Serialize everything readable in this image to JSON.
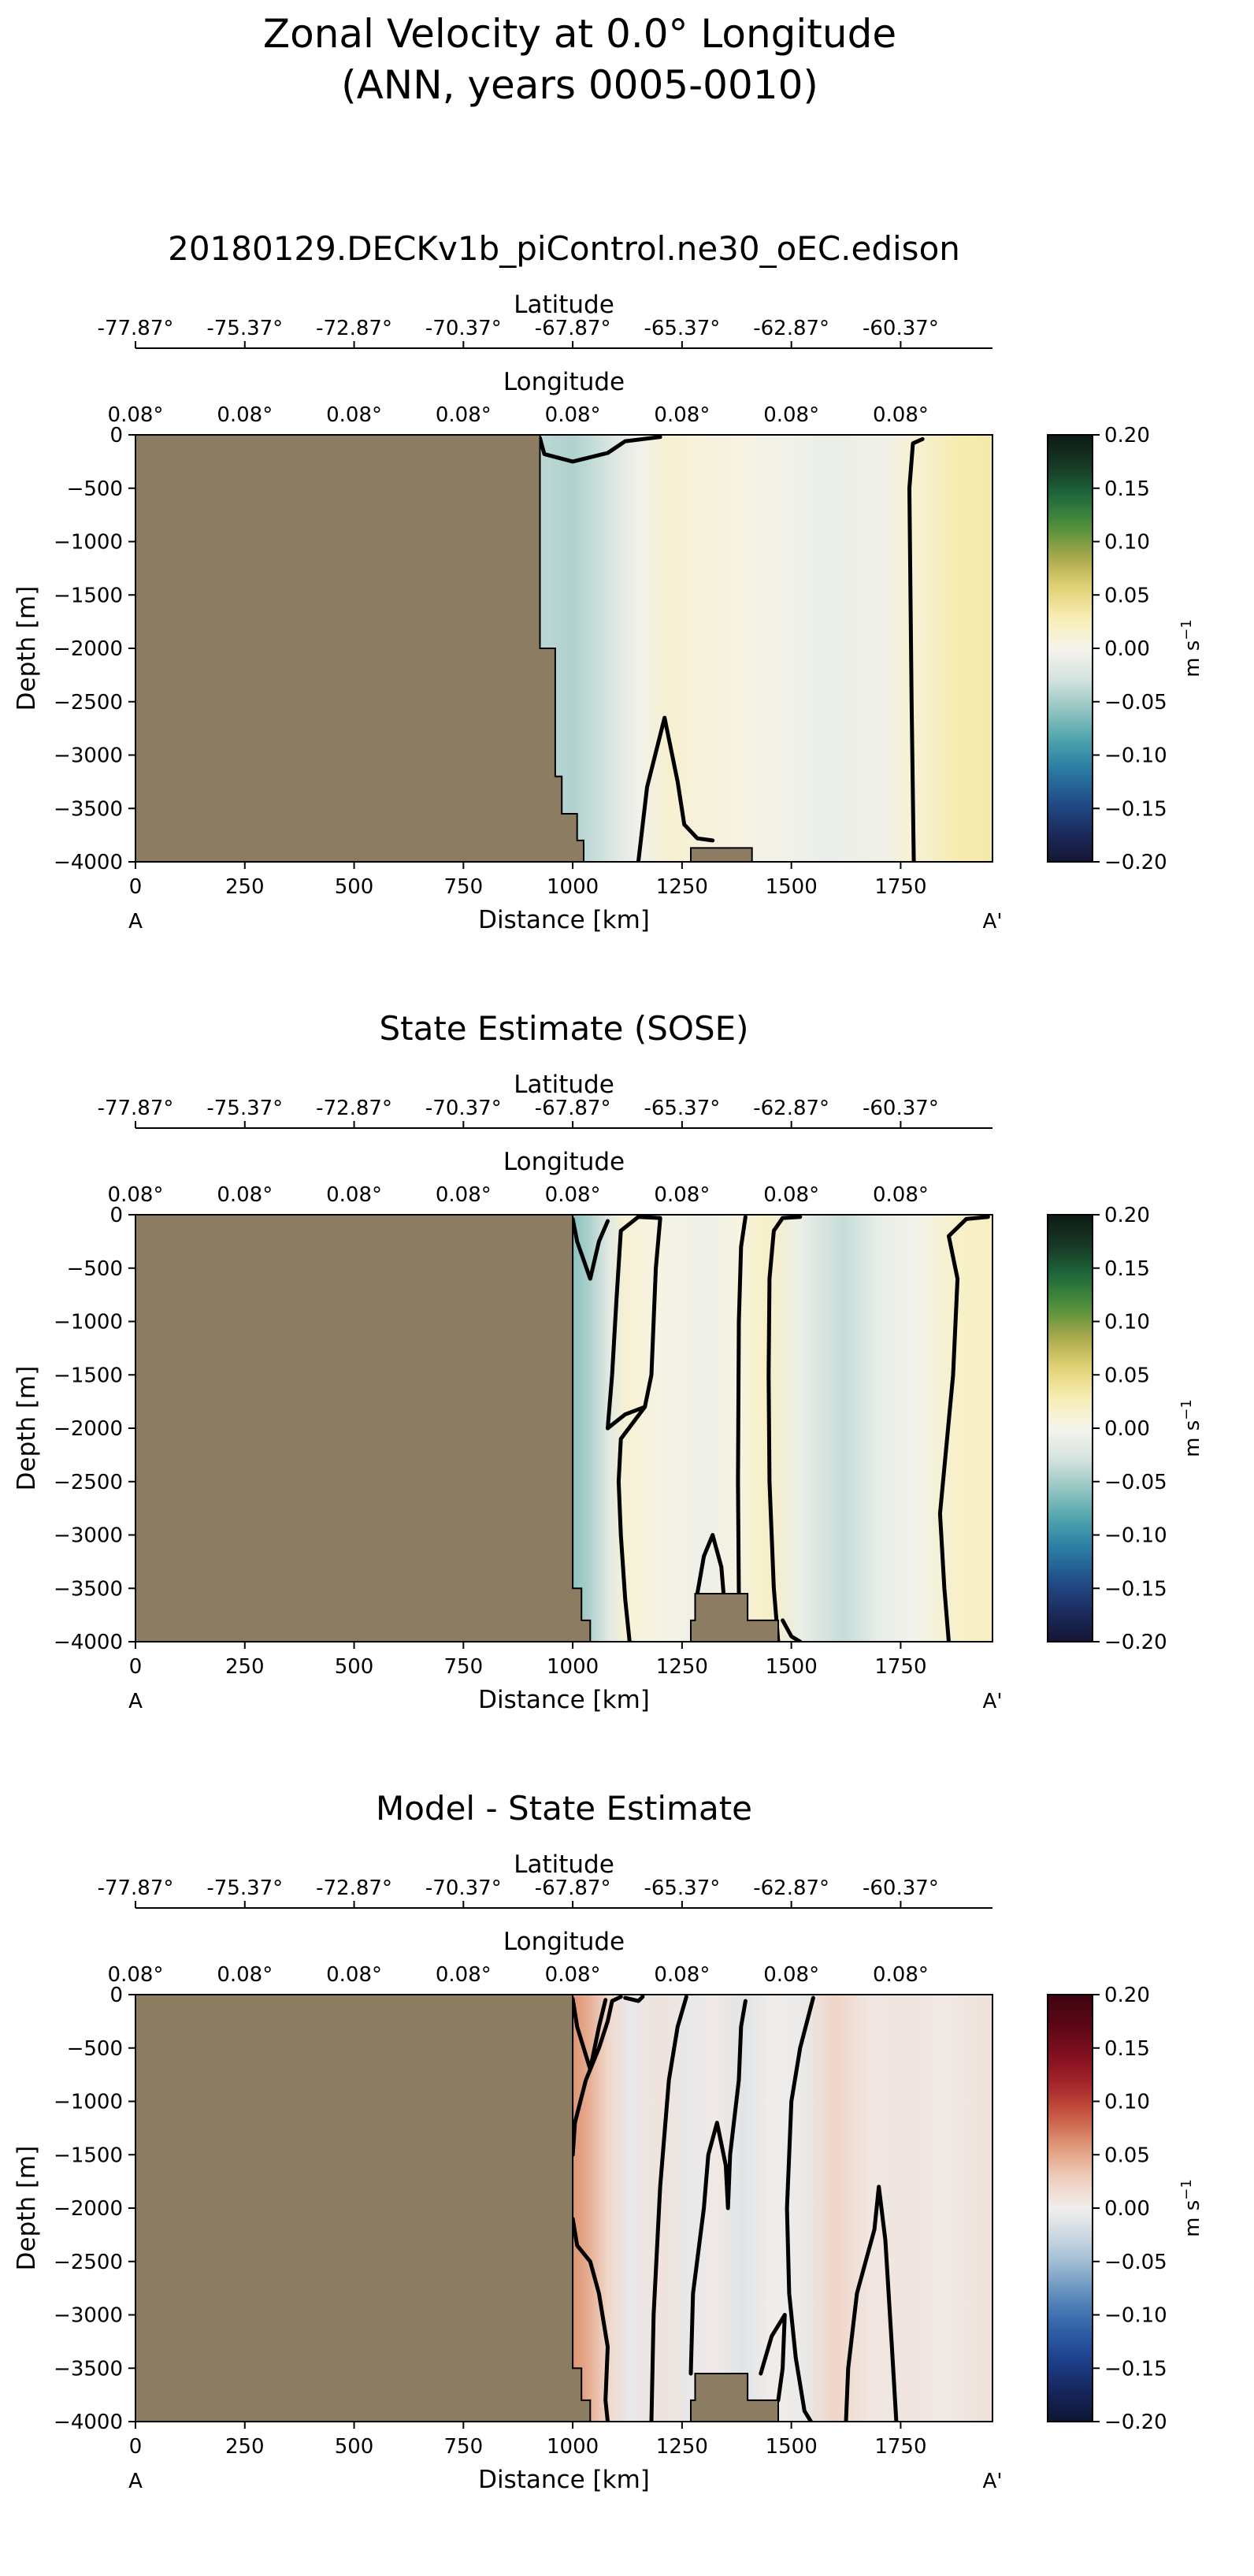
{
  "figure": {
    "title_line1": "Zonal Velocity at 0.0° Longitude",
    "title_line2": "(ANN, years 0005-0010)"
  },
  "colors": {
    "land": "#8c7d62",
    "contour": "#000000"
  },
  "chart_data": [
    {
      "type": "heatmap",
      "title": "20180129.DECKv1b_piControl.ne30_oEC.edison",
      "xlabel": "Distance [km]",
      "ylabel": "Depth [m]",
      "top_axis_1_label": "Latitude",
      "top_axis_1_ticks": [
        "-77.87°",
        "-75.37°",
        "-72.87°",
        "-70.37°",
        "-67.87°",
        "-65.37°",
        "-62.87°",
        "-60.37°"
      ],
      "top_axis_2_label": "Longitude",
      "top_axis_2_ticks": [
        "0.08°",
        "0.08°",
        "0.08°",
        "0.08°",
        "0.08°",
        "0.08°",
        "0.08°",
        "0.08°"
      ],
      "xlim": [
        0,
        1960
      ],
      "ylim": [
        -4000,
        0
      ],
      "xticks": [
        0,
        250,
        500,
        750,
        1000,
        1250,
        1500,
        1750
      ],
      "yticks": [
        0,
        -500,
        -1000,
        -1500,
        -2000,
        -2500,
        -3000,
        -3500,
        -4000
      ],
      "section_start_label": "A",
      "section_end_label": "A'",
      "colorbar": {
        "label": "m s",
        "label_exponent": "−1",
        "ticks": [
          "0.20",
          "0.15",
          "0.10",
          "0.05",
          "0.00",
          "−0.05",
          "−0.10",
          "−0.15",
          "−0.20"
        ],
        "range": [
          -0.2,
          0.2
        ],
        "colormap": [
          "#f6f4ec",
          "#f7edb4",
          "#e2d274",
          "#a7a84a",
          "#4e8f3a",
          "#1d6a3b",
          "#173826",
          "#0c1a12"
        ],
        "colormap_neg": [
          "#f6f4ec",
          "#d5e3df",
          "#93c5c2",
          "#4da3ac",
          "#2a7aa3",
          "#214e8a",
          "#1c2c5e",
          "#141535"
        ]
      },
      "land_profile": [
        [
          0,
          0
        ],
        [
          925,
          0
        ],
        [
          925,
          -2000
        ],
        [
          960,
          -2000
        ],
        [
          960,
          -3200
        ],
        [
          975,
          -3200
        ],
        [
          975,
          -3550
        ],
        [
          1010,
          -3550
        ],
        [
          1010,
          -3800
        ],
        [
          1025,
          -3800
        ],
        [
          1025,
          -4000
        ],
        [
          0,
          -4000
        ]
      ],
      "bathymetry_bumps": [
        [
          [
            1270,
            -4000
          ],
          [
            1270,
            -3870
          ],
          [
            1410,
            -3870
          ],
          [
            1410,
            -4000
          ]
        ]
      ],
      "velocity_profile": [
        {
          "x": 930,
          "v": -0.04
        },
        {
          "x": 1000,
          "v": -0.045
        },
        {
          "x": 1100,
          "v": -0.02
        },
        {
          "x": 1150,
          "v": -0.005
        },
        {
          "x": 1220,
          "v": 0.015
        },
        {
          "x": 1300,
          "v": 0.008
        },
        {
          "x": 1400,
          "v": 0.004
        },
        {
          "x": 1500,
          "v": -0.005
        },
        {
          "x": 1580,
          "v": -0.01
        },
        {
          "x": 1700,
          "v": -0.006
        },
        {
          "x": 1780,
          "v": 0.012
        },
        {
          "x": 1880,
          "v": 0.03
        },
        {
          "x": 1960,
          "v": 0.032
        }
      ],
      "contours": [
        [
          [
            925,
            -30
          ],
          [
            935,
            -180
          ],
          [
            1000,
            -250
          ],
          [
            1080,
            -170
          ],
          [
            1120,
            -60
          ],
          [
            1200,
            -20
          ]
        ],
        [
          [
            1780,
            -4000
          ],
          [
            1775,
            -2500
          ],
          [
            1770,
            -500
          ],
          [
            1778,
            -80
          ],
          [
            1800,
            -40
          ]
        ],
        [
          [
            1150,
            -4000
          ],
          [
            1170,
            -3300
          ],
          [
            1210,
            -2650
          ],
          [
            1240,
            -3250
          ],
          [
            1255,
            -3650
          ],
          [
            1285,
            -3780
          ],
          [
            1320,
            -3800
          ]
        ]
      ]
    },
    {
      "type": "heatmap",
      "title": "State Estimate (SOSE)",
      "xlabel": "Distance [km]",
      "ylabel": "Depth [m]",
      "top_axis_1_label": "Latitude",
      "top_axis_1_ticks": [
        "-77.87°",
        "-75.37°",
        "-72.87°",
        "-70.37°",
        "-67.87°",
        "-65.37°",
        "-62.87°",
        "-60.37°"
      ],
      "top_axis_2_label": "Longitude",
      "top_axis_2_ticks": [
        "0.08°",
        "0.08°",
        "0.08°",
        "0.08°",
        "0.08°",
        "0.08°",
        "0.08°",
        "0.08°"
      ],
      "xlim": [
        0,
        1960
      ],
      "ylim": [
        -4000,
        0
      ],
      "xticks": [
        0,
        250,
        500,
        750,
        1000,
        1250,
        1500,
        1750
      ],
      "yticks": [
        0,
        -500,
        -1000,
        -1500,
        -2000,
        -2500,
        -3000,
        -3500,
        -4000
      ],
      "section_start_label": "A",
      "section_end_label": "A'",
      "colorbar": {
        "label": "m s",
        "label_exponent": "−1",
        "ticks": [
          "0.20",
          "0.15",
          "0.10",
          "0.05",
          "0.00",
          "−0.05",
          "−0.10",
          "−0.15",
          "−0.20"
        ],
        "range": [
          -0.2,
          0.2
        ],
        "colormap": [
          "#f6f4ec",
          "#f7edb4",
          "#e2d274",
          "#a7a84a",
          "#4e8f3a",
          "#1d6a3b",
          "#173826",
          "#0c1a12"
        ],
        "colormap_neg": [
          "#f6f4ec",
          "#d5e3df",
          "#93c5c2",
          "#4da3ac",
          "#2a7aa3",
          "#214e8a",
          "#1c2c5e",
          "#141535"
        ]
      },
      "land_profile": [
        [
          0,
          0
        ],
        [
          1000,
          0
        ],
        [
          1000,
          -3500
        ],
        [
          1020,
          -3500
        ],
        [
          1020,
          -3800
        ],
        [
          1040,
          -3800
        ],
        [
          1040,
          -4000
        ],
        [
          0,
          -4000
        ]
      ],
      "bathymetry_bumps": [
        [
          [
            1270,
            -4000
          ],
          [
            1270,
            -3800
          ],
          [
            1280,
            -3800
          ],
          [
            1280,
            -3550
          ],
          [
            1400,
            -3550
          ],
          [
            1400,
            -3800
          ],
          [
            1470,
            -3800
          ],
          [
            1470,
            -4000
          ]
        ]
      ],
      "velocity_profile": [
        {
          "x": 1000,
          "v": -0.06
        },
        {
          "x": 1030,
          "v": -0.05
        },
        {
          "x": 1080,
          "v": -0.02
        },
        {
          "x": 1120,
          "v": 0.012
        },
        {
          "x": 1200,
          "v": 0.004
        },
        {
          "x": 1300,
          "v": -0.008
        },
        {
          "x": 1380,
          "v": 0.006
        },
        {
          "x": 1440,
          "v": 0.02
        },
        {
          "x": 1520,
          "v": -0.01
        },
        {
          "x": 1620,
          "v": -0.035
        },
        {
          "x": 1700,
          "v": -0.012
        },
        {
          "x": 1780,
          "v": -0.004
        },
        {
          "x": 1880,
          "v": 0.018
        },
        {
          "x": 1960,
          "v": 0.022
        }
      ],
      "contours": [
        [
          [
            1000,
            -40
          ],
          [
            1010,
            -250
          ],
          [
            1040,
            -600
          ],
          [
            1060,
            -250
          ],
          [
            1080,
            -60
          ]
        ],
        [
          [
            1080,
            -2000
          ],
          [
            1090,
            -1500
          ],
          [
            1100,
            -800
          ],
          [
            1110,
            -150
          ],
          [
            1150,
            -20
          ],
          [
            1200,
            -30
          ]
        ],
        [
          [
            1080,
            -2000
          ],
          [
            1120,
            -1870
          ],
          [
            1165,
            -1800
          ],
          [
            1180,
            -1500
          ],
          [
            1185,
            -1000
          ],
          [
            1190,
            -500
          ],
          [
            1200,
            -40
          ]
        ],
        [
          [
            1130,
            -4000
          ],
          [
            1120,
            -3600
          ],
          [
            1110,
            -3000
          ],
          [
            1105,
            -2500
          ],
          [
            1110,
            -2100
          ],
          [
            1165,
            -1800
          ]
        ],
        [
          [
            1380,
            -3550
          ],
          [
            1378,
            -2500
          ],
          [
            1380,
            -1000
          ],
          [
            1385,
            -300
          ],
          [
            1395,
            -20
          ]
        ],
        [
          [
            1285,
            -3550
          ],
          [
            1300,
            -3200
          ],
          [
            1320,
            -3000
          ],
          [
            1340,
            -3300
          ],
          [
            1345,
            -3550
          ]
        ],
        [
          [
            1470,
            -4000
          ],
          [
            1460,
            -3500
          ],
          [
            1450,
            -2500
          ],
          [
            1448,
            -1500
          ],
          [
            1450,
            -600
          ],
          [
            1460,
            -150
          ],
          [
            1480,
            -30
          ],
          [
            1520,
            -20
          ]
        ],
        [
          [
            1860,
            -4000
          ],
          [
            1850,
            -3500
          ],
          [
            1840,
            -2800
          ],
          [
            1870,
            -1500
          ],
          [
            1880,
            -600
          ],
          [
            1860,
            -200
          ],
          [
            1900,
            -40
          ],
          [
            1950,
            -20
          ]
        ],
        [
          [
            1480,
            -3800
          ],
          [
            1500,
            -3950
          ],
          [
            1520,
            -4000
          ]
        ]
      ]
    },
    {
      "type": "heatmap",
      "title": "Model - State Estimate",
      "xlabel": "Distance [km]",
      "ylabel": "Depth [m]",
      "top_axis_1_label": "Latitude",
      "top_axis_1_ticks": [
        "-77.87°",
        "-75.37°",
        "-72.87°",
        "-70.37°",
        "-67.87°",
        "-65.37°",
        "-62.87°",
        "-60.37°"
      ],
      "top_axis_2_label": "Longitude",
      "top_axis_2_ticks": [
        "0.08°",
        "0.08°",
        "0.08°",
        "0.08°",
        "0.08°",
        "0.08°",
        "0.08°",
        "0.08°"
      ],
      "xlim": [
        0,
        1960
      ],
      "ylim": [
        -4000,
        0
      ],
      "xticks": [
        0,
        250,
        500,
        750,
        1000,
        1250,
        1500,
        1750
      ],
      "yticks": [
        0,
        -500,
        -1000,
        -1500,
        -2000,
        -2500,
        -3000,
        -3500,
        -4000
      ],
      "section_start_label": "A",
      "section_end_label": "A'",
      "colorbar": {
        "label": "m s",
        "label_exponent": "−1",
        "ticks": [
          "0.20",
          "0.15",
          "0.10",
          "0.05",
          "0.00",
          "−0.05",
          "−0.10",
          "−0.15",
          "−0.20"
        ],
        "range": [
          -0.2,
          0.2
        ],
        "colormap": [
          "#f1eeec",
          "#efcdbc",
          "#e19a7b",
          "#c95a43",
          "#a8262b",
          "#821020",
          "#5c0715",
          "#3e0410"
        ],
        "colormap_neg": [
          "#f1eeec",
          "#c8d6e1",
          "#92b4cf",
          "#5686b9",
          "#2f5fa8",
          "#1d3f8c",
          "#16265c",
          "#0d1535"
        ]
      },
      "land_profile": [
        [
          0,
          0
        ],
        [
          1000,
          0
        ],
        [
          1000,
          -3500
        ],
        [
          1020,
          -3500
        ],
        [
          1020,
          -3800
        ],
        [
          1040,
          -3800
        ],
        [
          1040,
          -4000
        ],
        [
          0,
          -4000
        ]
      ],
      "bathymetry_bumps": [
        [
          [
            1270,
            -4000
          ],
          [
            1270,
            -3800
          ],
          [
            1280,
            -3800
          ],
          [
            1280,
            -3550
          ],
          [
            1400,
            -3550
          ],
          [
            1400,
            -3800
          ],
          [
            1470,
            -3800
          ],
          [
            1470,
            -4000
          ]
        ]
      ],
      "velocity_profile": [
        {
          "x": 1000,
          "v": 0.06
        },
        {
          "x": 1030,
          "v": 0.05
        },
        {
          "x": 1080,
          "v": 0.02
        },
        {
          "x": 1130,
          "v": -0.006
        },
        {
          "x": 1200,
          "v": 0.01
        },
        {
          "x": 1270,
          "v": -0.006
        },
        {
          "x": 1330,
          "v": 0.004
        },
        {
          "x": 1390,
          "v": -0.012
        },
        {
          "x": 1450,
          "v": 0.002
        },
        {
          "x": 1520,
          "v": -0.004
        },
        {
          "x": 1600,
          "v": 0.022
        },
        {
          "x": 1680,
          "v": 0.006
        },
        {
          "x": 1760,
          "v": 0.008
        },
        {
          "x": 1860,
          "v": 0.004
        },
        {
          "x": 1960,
          "v": 0.012
        }
      ],
      "contours": [
        [
          [
            1000,
            -40
          ],
          [
            1010,
            -300
          ],
          [
            1040,
            -700
          ],
          [
            1060,
            -300
          ],
          [
            1075,
            -50
          ]
        ],
        [
          [
            1000,
            -1500
          ],
          [
            1005,
            -1200
          ],
          [
            1030,
            -800
          ],
          [
            1060,
            -500
          ],
          [
            1080,
            -250
          ],
          [
            1090,
            -60
          ],
          [
            1110,
            -20
          ]
        ],
        [
          [
            1000,
            -2100
          ],
          [
            1010,
            -2350
          ],
          [
            1040,
            -2500
          ],
          [
            1060,
            -2800
          ],
          [
            1080,
            -3300
          ],
          [
            1075,
            -3800
          ],
          [
            1080,
            -4000
          ]
        ],
        [
          [
            1180,
            -4000
          ],
          [
            1185,
            -3000
          ],
          [
            1200,
            -1800
          ],
          [
            1220,
            -800
          ],
          [
            1240,
            -300
          ],
          [
            1260,
            -20
          ]
        ],
        [
          [
            1120,
            -30
          ],
          [
            1150,
            -60
          ],
          [
            1160,
            -20
          ]
        ],
        [
          [
            1270,
            -3550
          ],
          [
            1275,
            -2800
          ],
          [
            1300,
            -2000
          ],
          [
            1310,
            -1500
          ],
          [
            1330,
            -1200
          ],
          [
            1350,
            -1600
          ],
          [
            1355,
            -2000
          ],
          [
            1360,
            -1500
          ],
          [
            1380,
            -800
          ],
          [
            1385,
            -300
          ],
          [
            1395,
            -60
          ]
        ],
        [
          [
            1470,
            -3800
          ],
          [
            1480,
            -3500
          ],
          [
            1485,
            -3000
          ],
          [
            1455,
            -3200
          ],
          [
            1430,
            -3550
          ]
        ],
        [
          [
            1550,
            -30
          ],
          [
            1520,
            -500
          ],
          [
            1500,
            -1000
          ],
          [
            1490,
            -2000
          ],
          [
            1495,
            -2800
          ],
          [
            1510,
            -3400
          ],
          [
            1530,
            -3900
          ],
          [
            1545,
            -4000
          ]
        ],
        [
          [
            1740,
            -4000
          ],
          [
            1730,
            -3300
          ],
          [
            1715,
            -2300
          ],
          [
            1700,
            -1800
          ],
          [
            1690,
            -2200
          ],
          [
            1650,
            -2800
          ],
          [
            1630,
            -3500
          ],
          [
            1625,
            -4000
          ]
        ]
      ]
    }
  ]
}
